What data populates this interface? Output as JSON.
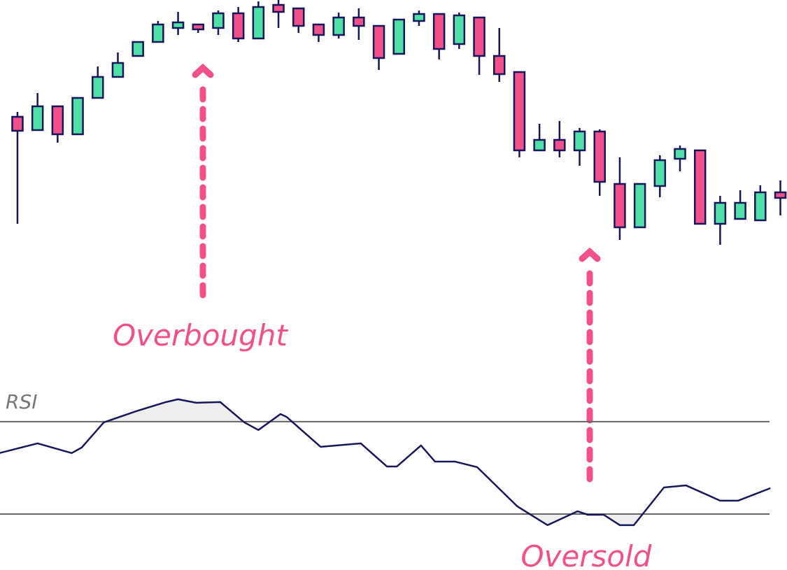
{
  "chart_data": [
    {
      "type": "candlestick",
      "annotations": [
        "Overbought",
        "Oversold"
      ],
      "open": [
        233,
        214,
        248,
        208,
        260,
        290,
        320,
        340,
        360,
        365,
        360,
        381,
        345,
        393,
        388,
        365,
        350,
        375,
        363,
        323,
        370,
        380,
        337,
        375,
        320,
        297,
        185,
        200,
        185,
        212,
        137,
        75,
        134,
        173,
        185,
        80,
        87,
        85,
        125
      ],
      "high": [
        240,
        267,
        248,
        260,
        305,
        325,
        340,
        370,
        383,
        365,
        385,
        390,
        398,
        400,
        388,
        365,
        382,
        388,
        363,
        372,
        385,
        380,
        382,
        375,
        360,
        297,
        223,
        227,
        217,
        215,
        175,
        137,
        178,
        192,
        185,
        120,
        128,
        135,
        142
      ],
      "low": [
        80,
        214,
        196,
        208,
        260,
        290,
        320,
        340,
        350,
        353,
        350,
        340,
        345,
        360,
        353,
        340,
        345,
        343,
        300,
        323,
        363,
        315,
        330,
        293,
        283,
        175,
        185,
        175,
        163,
        120,
        57,
        75,
        118,
        155,
        80,
        50,
        87,
        85,
        92
      ],
      "close": [
        213,
        248,
        208,
        260,
        290,
        310,
        340,
        365,
        368,
        358,
        381,
        345,
        390,
        383,
        363,
        350,
        375,
        363,
        317,
        372,
        380,
        330,
        378,
        320,
        294,
        185,
        200,
        185,
        212,
        140,
        75,
        137,
        171,
        187,
        80,
        110,
        110,
        125,
        117
      ],
      "up_color": "#4fe0a8",
      "down_color": "#f2508a",
      "ylim": [
        0,
        400
      ],
      "xlim": [
        -0.87,
        38.33
      ]
    },
    {
      "type": "line",
      "title": "RSI",
      "x": [
        -0.9,
        1.0,
        2.7,
        3.2,
        4.3,
        5.9,
        7.4,
        8.0,
        8.9,
        10.1,
        11.3,
        12.0,
        13.1,
        13.4,
        15.1,
        17.1,
        18.4,
        18.9,
        20.1,
        20.8,
        21.8,
        22.9,
        24.9,
        26.4,
        27.9,
        28.4,
        29.2,
        30.0,
        30.7,
        32.2,
        33.3,
        35.0,
        35.9,
        37.5
      ],
      "values": [
        56.4,
        60.6,
        56.4,
        58.8,
        69.7,
        74.5,
        78.5,
        79.7,
        78.2,
        78.5,
        69.7,
        66.4,
        73.3,
        72.1,
        59.1,
        60.6,
        50.6,
        50.6,
        59.7,
        52.7,
        52.7,
        50.3,
        33.3,
        25.2,
        31.2,
        29.7,
        29.7,
        25.2,
        25.2,
        41.5,
        42.4,
        35.8,
        35.8,
        41.2
      ],
      "levels": [
        70,
        30
      ],
      "color": "#16175a",
      "level_color": "#666666",
      "fill_color": "#eeeeee",
      "ylim": [
        19.4,
        83.0
      ],
      "xlim": [
        -0.87,
        38.33
      ]
    }
  ]
}
